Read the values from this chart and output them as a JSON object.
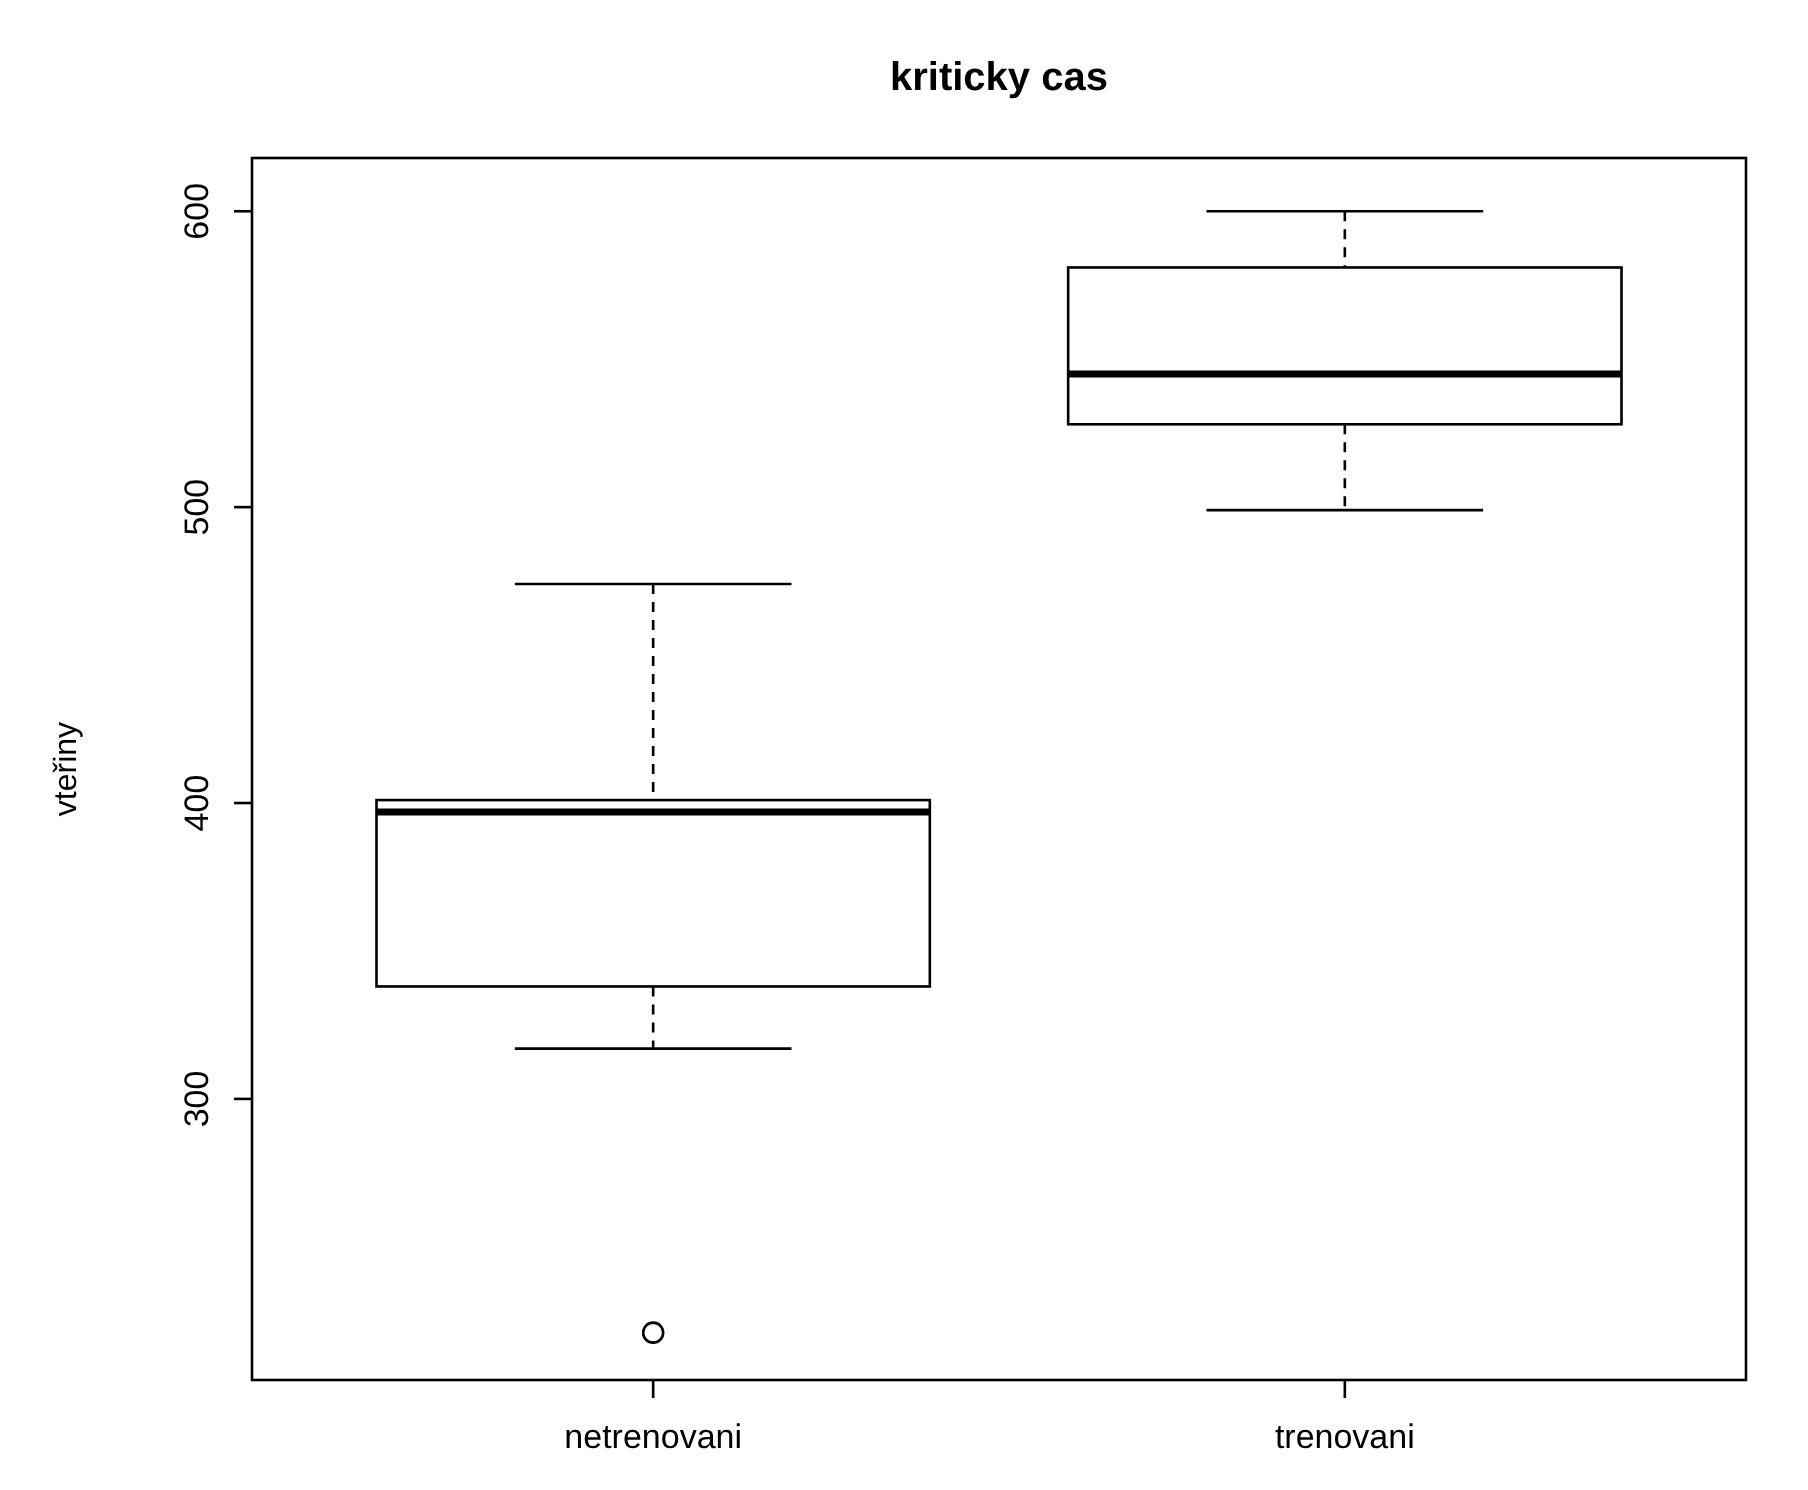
{
  "chart_data": {
    "type": "box",
    "title": "kriticky cas",
    "ylabel": "vteřiny",
    "categories": [
      "netrenovani",
      "trenovani"
    ],
    "boxes": [
      {
        "low": 317,
        "q1": 338,
        "median": 397,
        "q3": 401,
        "high": 474,
        "outliers": [
          221
        ]
      },
      {
        "low": 499,
        "q1": 528,
        "median": 545,
        "q3": 581,
        "high": 600
      }
    ],
    "ylim": [
      205,
      618
    ],
    "yticks": [
      300,
      400,
      500,
      600
    ],
    "grid": false
  }
}
